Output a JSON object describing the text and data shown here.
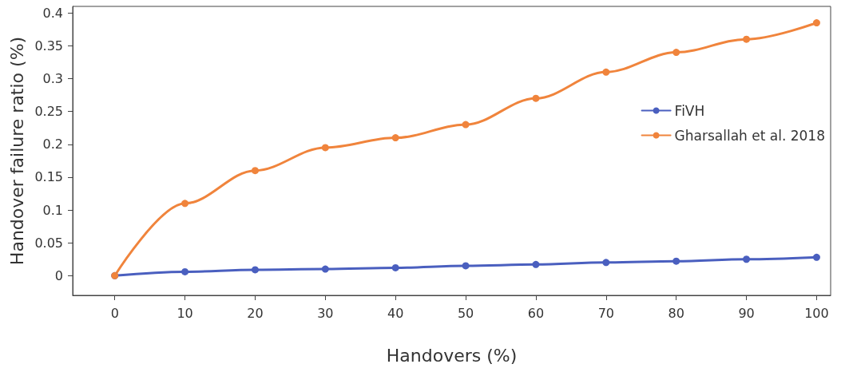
{
  "chart_data": {
    "type": "line",
    "xlabel": "Handovers (%)",
    "ylabel": "Handover failure ratio (%)",
    "x": [
      0,
      10,
      20,
      30,
      40,
      50,
      60,
      70,
      80,
      90,
      100
    ],
    "series": [
      {
        "name": "FiVH",
        "color": "#4a5fbf",
        "values": [
          0,
          0.006,
          0.009,
          0.01,
          0.012,
          0.015,
          0.017,
          0.02,
          0.022,
          0.025,
          0.028
        ]
      },
      {
        "name": "Gharsallah et al. 2018",
        "color": "#f0843c",
        "values": [
          0,
          0.11,
          0.16,
          0.195,
          0.21,
          0.23,
          0.27,
          0.31,
          0.34,
          0.36,
          0.385
        ]
      }
    ],
    "xlim": [
      -6,
      102
    ],
    "xticks": [
      0,
      10,
      20,
      30,
      40,
      50,
      60,
      70,
      80,
      90,
      100
    ],
    "ylim": [
      -0.03,
      0.41
    ],
    "yticks": [
      0,
      0.05,
      0.1,
      0.15,
      0.2,
      0.25,
      0.3,
      0.35,
      0.4
    ],
    "grid": false,
    "legend": "right",
    "marker": "circle",
    "line_style": "solid"
  }
}
